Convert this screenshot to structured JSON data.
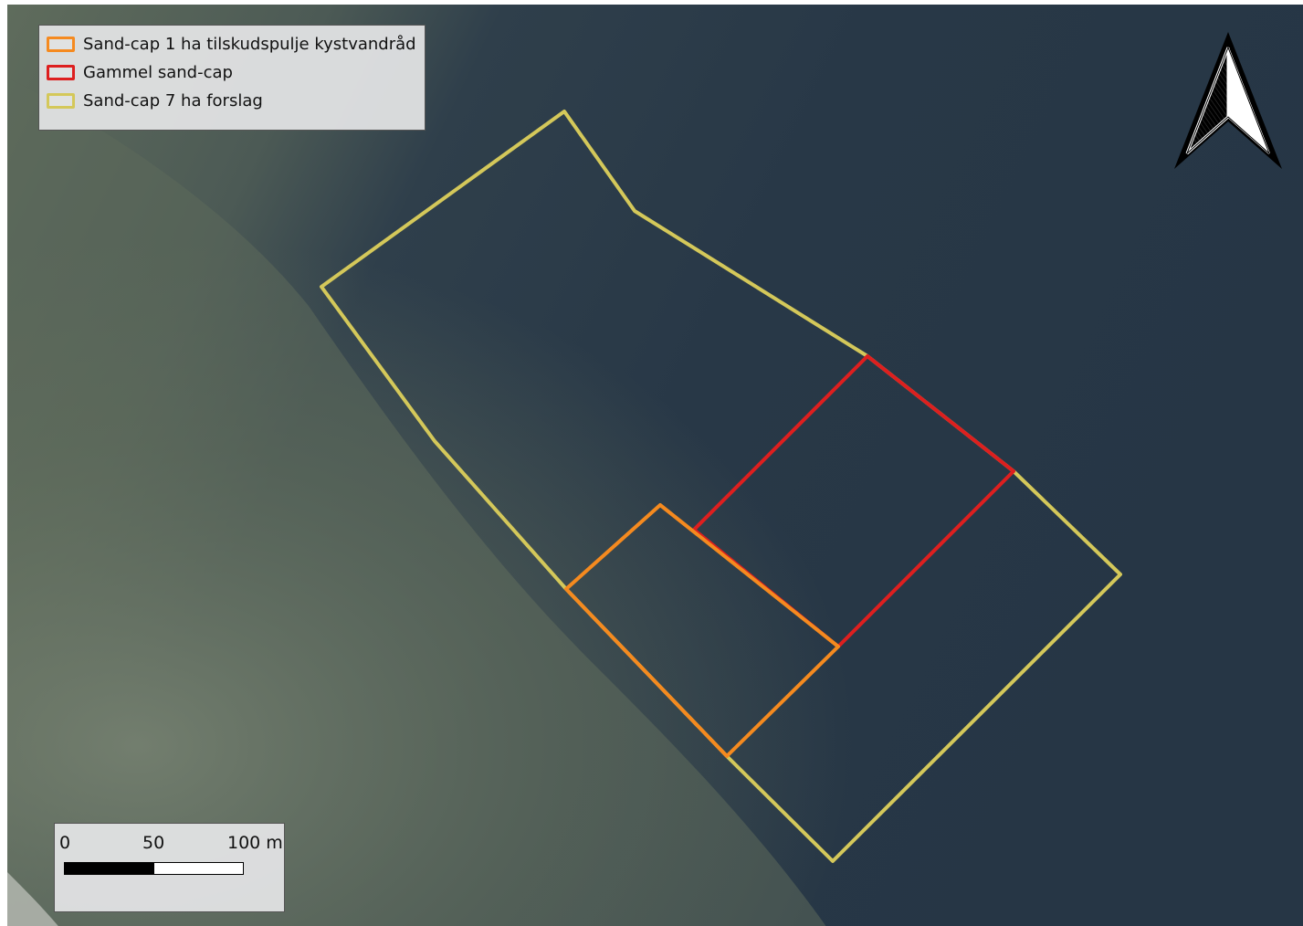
{
  "map": {
    "legend": {
      "items": [
        {
          "label": "Sand-cap 1 ha tilskudspulje kystvandråd",
          "color": "#f58a1f"
        },
        {
          "label": "Gammel sand-cap",
          "color": "#dd1f1f"
        },
        {
          "label": "Sand-cap 7 ha forslag",
          "color": "#d4c85a"
        }
      ]
    },
    "scale_bar": {
      "labels": [
        "0",
        "50",
        "100 m"
      ],
      "segment_colors": [
        "#000000",
        "#ffffff"
      ]
    },
    "north_arrow": {
      "icon": "north-arrow-icon"
    },
    "colors": {
      "water": "#2a3a48",
      "shallow_water": "#5f6c5e",
      "sand_cap_7ha": "#d4c85a",
      "old_sand_cap": "#dd1f1f",
      "sand_cap_1ha": "#f58a1f"
    }
  }
}
